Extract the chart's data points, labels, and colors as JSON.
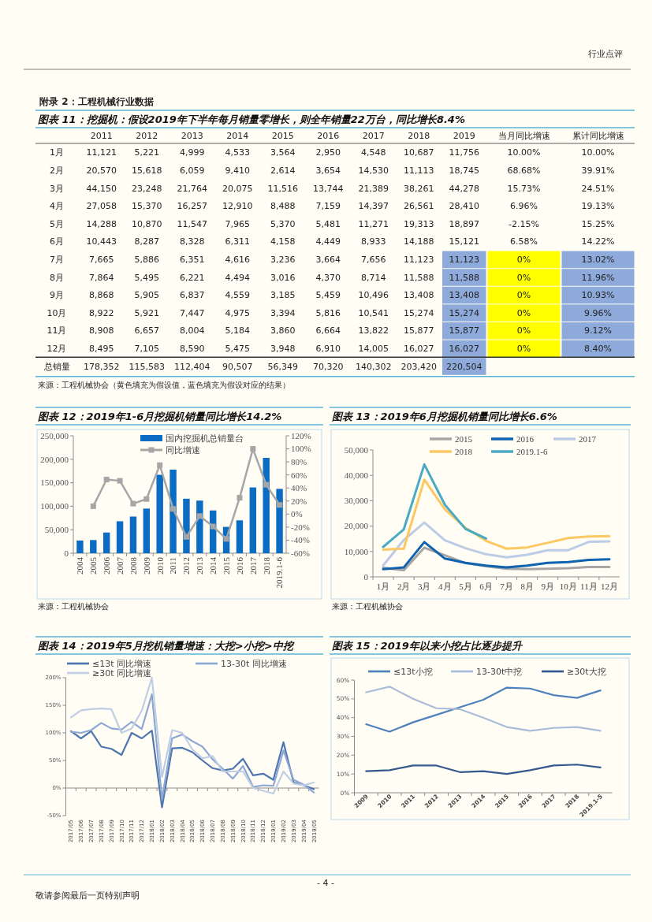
{
  "chart_data": [
    {
      "type": "other",
      "title": "附录 2：工程机械行业数据",
      "annotations": [
        "行业点评",
        "- 4 -",
        "敬请参阅最后一页特别声明"
      ]
    },
    {
      "type": "heatmap",
      "title": "图表 11：挖掘机：假设2019年下半年每月销量零增长，则全年销量22万台，同比增长8.4%",
      "categories": [
        "2011",
        "2012",
        "2013",
        "2014",
        "2015",
        "2016",
        "2017",
        "2018",
        "2019",
        "当月同比增速",
        "累计同比增速"
      ],
      "y_categories": [
        "1月",
        "2月",
        "3月",
        "4月",
        "5月",
        "6月",
        "7月",
        "8月",
        "9月",
        "10月",
        "11月",
        "12月",
        "总销量"
      ],
      "cells": [
        [
          11121,
          5221,
          4999,
          4533,
          3564,
          2950,
          4548,
          10687,
          11756,
          10.0,
          10.0
        ],
        [
          20570,
          15618,
          6059,
          9410,
          2614,
          3654,
          14530,
          11113,
          18745,
          68.68,
          39.91
        ],
        [
          44150,
          23248,
          21764,
          20075,
          11516,
          13744,
          21389,
          38261,
          44278,
          15.73,
          24.51
        ],
        [
          27058,
          15370,
          16257,
          12910,
          8488,
          7159,
          14397,
          26561,
          28410,
          6.96,
          19.13
        ],
        [
          14288,
          10870,
          11547,
          7965,
          5370,
          5481,
          11271,
          19313,
          18897,
          -2.15,
          15.25
        ],
        [
          10443,
          8287,
          8328,
          6311,
          4158,
          4449,
          8933,
          14188,
          15121,
          6.58,
          14.22
        ],
        [
          7665,
          5886,
          6351,
          4616,
          3236,
          3664,
          7656,
          11123,
          11123,
          0,
          13.02
        ],
        [
          7864,
          5495,
          6221,
          4494,
          3016,
          4370,
          8714,
          11588,
          11588,
          0,
          11.96
        ],
        [
          8868,
          5905,
          6837,
          4559,
          3185,
          5459,
          10496,
          13408,
          13408,
          0,
          10.93
        ],
        [
          8922,
          5921,
          7447,
          4975,
          3394,
          5816,
          10541,
          15274,
          15274,
          0,
          9.96
        ],
        [
          8908,
          6657,
          8004,
          5184,
          3860,
          6664,
          13822,
          15877,
          15877,
          0,
          9.12
        ],
        [
          8495,
          7105,
          8590,
          5475,
          3948,
          6910,
          14005,
          16027,
          16027,
          0,
          8.4
        ],
        [
          178352,
          115583,
          112404,
          90507,
          56349,
          70320,
          140302,
          203420,
          220504,
          null,
          null
        ]
      ],
      "cell_labels": [
        [
          "11,121",
          "5,221",
          "4,999",
          "4,533",
          "3,564",
          "2,950",
          "4,548",
          "10,687",
          "11,756",
          "10.00%",
          "10.00%"
        ],
        [
          "20,570",
          "15,618",
          "6,059",
          "9,410",
          "2,614",
          "3,654",
          "14,530",
          "11,113",
          "18,745",
          "68.68%",
          "39.91%"
        ],
        [
          "44,150",
          "23,248",
          "21,764",
          "20,075",
          "11,516",
          "13,744",
          "21,389",
          "38,261",
          "44,278",
          "15.73%",
          "24.51%"
        ],
        [
          "27,058",
          "15,370",
          "16,257",
          "12,910",
          "8,488",
          "7,159",
          "14,397",
          "26,561",
          "28,410",
          "6.96%",
          "19.13%"
        ],
        [
          "14,288",
          "10,870",
          "11,547",
          "7,965",
          "5,370",
          "5,481",
          "11,271",
          "19,313",
          "18,897",
          "-2.15%",
          "15.25%"
        ],
        [
          "10,443",
          "8,287",
          "8,328",
          "6,311",
          "4,158",
          "4,449",
          "8,933",
          "14,188",
          "15,121",
          "6.58%",
          "14.22%"
        ],
        [
          "7,665",
          "5,886",
          "6,351",
          "4,616",
          "3,236",
          "3,664",
          "7,656",
          "11,123",
          "11,123",
          "0%",
          "13.02%"
        ],
        [
          "7,864",
          "5,495",
          "6,221",
          "4,494",
          "3,016",
          "4,370",
          "8,714",
          "11,588",
          "11,588",
          "0%",
          "11.96%"
        ],
        [
          "8,868",
          "5,905",
          "6,837",
          "4,559",
          "3,185",
          "5,459",
          "10,496",
          "13,408",
          "13,408",
          "0%",
          "10.93%"
        ],
        [
          "8,922",
          "5,921",
          "7,447",
          "4,975",
          "3,394",
          "5,816",
          "10,541",
          "15,274",
          "15,274",
          "0%",
          "9.96%"
        ],
        [
          "8,908",
          "6,657",
          "8,004",
          "5,184",
          "3,860",
          "6,664",
          "13,822",
          "15,877",
          "15,877",
          "0%",
          "9.12%"
        ],
        [
          "8,495",
          "7,105",
          "8,590",
          "5,475",
          "3,948",
          "6,910",
          "14,005",
          "16,027",
          "16,027",
          "0%",
          "8.40%"
        ],
        [
          "178,352",
          "115,583",
          "112,404",
          "90,507",
          "56,349",
          "70,320",
          "140,302",
          "203,420",
          "220,504",
          null,
          null
        ]
      ],
      "colors": [
        [
          null,
          null,
          null,
          null,
          null,
          null,
          null,
          null,
          null,
          null,
          null
        ],
        [
          null,
          null,
          null,
          null,
          null,
          null,
          null,
          null,
          null,
          null,
          null
        ],
        [
          null,
          null,
          null,
          null,
          null,
          null,
          null,
          null,
          null,
          null,
          null
        ],
        [
          null,
          null,
          null,
          null,
          null,
          null,
          null,
          null,
          null,
          null,
          null
        ],
        [
          null,
          null,
          null,
          null,
          null,
          null,
          null,
          null,
          null,
          null,
          null
        ],
        [
          null,
          null,
          null,
          null,
          null,
          null,
          null,
          null,
          null,
          null,
          null
        ],
        [
          null,
          null,
          null,
          null,
          null,
          null,
          null,
          null,
          "#8eaadb",
          "#ffff00",
          "#8eaadb"
        ],
        [
          null,
          null,
          null,
          null,
          null,
          null,
          null,
          null,
          "#8eaadb",
          "#ffff00",
          "#8eaadb"
        ],
        [
          null,
          null,
          null,
          null,
          null,
          null,
          null,
          null,
          "#8eaadb",
          "#ffff00",
          "#8eaadb"
        ],
        [
          null,
          null,
          null,
          null,
          null,
          null,
          null,
          null,
          "#8eaadb",
          "#ffff00",
          "#8eaadb"
        ],
        [
          null,
          null,
          null,
          null,
          null,
          null,
          null,
          null,
          "#8eaadb",
          "#ffff00",
          "#8eaadb"
        ],
        [
          null,
          null,
          null,
          null,
          null,
          null,
          null,
          null,
          "#8eaadb",
          "#ffff00",
          "#8eaadb"
        ],
        [
          null,
          null,
          null,
          null,
          null,
          null,
          null,
          null,
          "#8eaadb",
          null,
          null
        ]
      ],
      "annotations": [
        "来源：工程机械协会（黄色填充为假设值，蓝色填充为假设对应的结果）"
      ]
    },
    {
      "type": "bar",
      "title": "图表 12：2019年1-6月挖掘机销量同比增长14.2%",
      "categories": [
        "2004",
        "2005",
        "2006",
        "2007",
        "2008",
        "2009",
        "2010",
        "2011",
        "2012",
        "2013",
        "2014",
        "2015",
        "2016",
        "2017",
        "2018",
        "2019.1-6"
      ],
      "series": [
        {
          "name": "国内挖掘机总销量台",
          "type": "bar",
          "color": "#0b6cc4",
          "values": [
            27000,
            28000,
            44000,
            68000,
            78000,
            95000,
            167000,
            178000,
            116000,
            112000,
            91000,
            56000,
            70000,
            140000,
            203000,
            137000
          ]
        },
        {
          "name": "同比增速",
          "type": "line",
          "axis": "y2",
          "color": "#a6a6a6",
          "values": [
            null,
            12,
            53,
            51,
            16,
            23,
            75,
            8,
            -35,
            -3,
            -19,
            -38,
            25,
            100,
            45,
            14
          ]
        }
      ],
      "ylim": [
        0,
        250000
      ],
      "yticks": [
        0,
        {
          "value": 50000,
          "label": "50,000"
        },
        {
          "value": 100000,
          "label": "100,000"
        },
        {
          "value": 150000,
          "label": "150,000"
        },
        {
          "value": 200000,
          "label": "200,000"
        },
        {
          "value": 250000,
          "label": "250,000"
        }
      ],
      "y2lim": [
        -60,
        120
      ],
      "y2ticks": [
        {
          "value": -60,
          "label": "-60%"
        },
        {
          "value": -40,
          "label": "-40%"
        },
        {
          "value": -20,
          "label": "-20%"
        },
        {
          "value": 0,
          "label": "0%"
        },
        {
          "value": 20,
          "label": "20%"
        },
        {
          "value": 40,
          "label": "40%"
        },
        {
          "value": 60,
          "label": "60%"
        },
        {
          "value": 80,
          "label": "80%"
        },
        {
          "value": 100,
          "label": "100%"
        },
        {
          "value": 120,
          "label": "120%"
        }
      ],
      "marker": "square",
      "legend": "top",
      "annotations": [
        "来源：工程机械协会"
      ]
    },
    {
      "type": "line",
      "title": "图表 13：2019年6月挖掘机销量同比增长6.6%",
      "categories": [
        "1月",
        "2月",
        "3月",
        "4月",
        "5月",
        "6月",
        "7月",
        "8月",
        "9月",
        "10月",
        "11月",
        "12月"
      ],
      "series": [
        {
          "name": "2015",
          "color": "#a6a6a6",
          "values": [
            3600,
            2600,
            11500,
            8500,
            5400,
            4200,
            3200,
            3000,
            3200,
            3400,
            3900,
            3900
          ]
        },
        {
          "name": "2016",
          "color": "#0e62b0",
          "values": [
            3000,
            3700,
            13700,
            7200,
            5500,
            4400,
            3700,
            4400,
            5500,
            5800,
            6700,
            6900
          ]
        },
        {
          "name": "2017",
          "color": "#bccbe6",
          "values": [
            4500,
            14500,
            21400,
            14400,
            11300,
            8900,
            7700,
            8700,
            10500,
            10500,
            13800,
            14000
          ]
        },
        {
          "name": "2018",
          "color": "#fbc862",
          "values": [
            10700,
            11100,
            38300,
            26600,
            19300,
            14200,
            11100,
            11600,
            13400,
            15300,
            15900,
            16000
          ]
        },
        {
          "name": "2019.1-6",
          "color": "#4aaac4",
          "values": [
            11800,
            18700,
            44300,
            28400,
            18900,
            15100,
            null,
            null,
            null,
            null,
            null,
            null
          ]
        }
      ],
      "ylim": [
        0,
        50000
      ],
      "yticks": [
        0,
        {
          "value": 10000,
          "label": "10,000"
        },
        {
          "value": 20000,
          "label": "20,000"
        },
        {
          "value": 30000,
          "label": "30,000"
        },
        {
          "value": 40000,
          "label": "40,000"
        },
        {
          "value": 50000,
          "label": "50,000"
        }
      ],
      "legend": "top",
      "annotations": [
        "来源：工程机械协会"
      ]
    },
    {
      "type": "line",
      "title": "图表 14：2019年5月挖机销量增速：大挖>小挖>中挖",
      "categories": [
        "2017/05",
        "2017/06",
        "2017/07",
        "2017/08",
        "2017/09",
        "2017/10",
        "2017/11",
        "2017/12",
        "2018/01",
        "2018/02",
        "2018/03",
        "2018/04",
        "2018/05",
        "2018/06",
        "2018/07",
        "2018/08",
        "2018/09",
        "2018/10",
        "2018/11",
        "2018/12",
        "2019/01",
        "2019/02",
        "2019/03",
        "2019/04",
        "2019/05"
      ],
      "series": [
        {
          "name": "≤13t 同比增速",
          "color": "#4f76b0",
          "values": [
            103,
            90,
            103,
            75,
            71,
            60,
            100,
            90,
            104,
            -35,
            72,
            73,
            65,
            50,
            36,
            32,
            35,
            53,
            23,
            26,
            15,
            83,
            10,
            5,
            -2
          ]
        },
        {
          "name": "13-30t 同比增速",
          "color": "#8ea8d4",
          "values": [
            102,
            100,
            105,
            118,
            108,
            106,
            120,
            107,
            170,
            -20,
            90,
            97,
            85,
            75,
            52,
            35,
            17,
            40,
            2,
            5,
            4,
            68,
            15,
            6,
            -8
          ]
        },
        {
          "name": "≥30t 同比增速",
          "color": "#bfcde5",
          "values": [
            128,
            141,
            143,
            144,
            143,
            100,
            108,
            140,
            200,
            20,
            105,
            100,
            70,
            54,
            58,
            30,
            30,
            30,
            0,
            -5,
            -10,
            30,
            8,
            5,
            10
          ]
        }
      ],
      "ylim": [
        -50,
        200
      ],
      "yticks": [
        {
          "value": -50,
          "label": "-50%"
        },
        {
          "value": 0,
          "label": "0%"
        },
        {
          "value": 50,
          "label": "50%"
        },
        {
          "value": 100,
          "label": "100%"
        },
        {
          "value": 150,
          "label": "150%"
        },
        {
          "value": 200,
          "label": "200%"
        }
      ],
      "legend": "top"
    },
    {
      "type": "line",
      "title": "图表 15：2019年以来小挖占比逐步提升",
      "categories": [
        "2009",
        "2010",
        "2011",
        "2012",
        "2013",
        "2014",
        "2015",
        "2016",
        "2017",
        "2018",
        "2019.1-5"
      ],
      "series": [
        {
          "name": "≤13t小挖",
          "color": "#4f81bd",
          "values": [
            36.5,
            32.5,
            37.5,
            41.5,
            45.5,
            49.5,
            56,
            55.5,
            52,
            50.5,
            54.5
          ]
        },
        {
          "name": "13-30t中挖",
          "color": "#a9bcd9",
          "values": [
            53.5,
            56.5,
            50,
            45,
            44.5,
            40,
            35,
            33,
            34.5,
            35,
            33
          ]
        },
        {
          "name": "≥30t大挖",
          "color": "#35598f",
          "values": [
            11.5,
            12,
            14.5,
            14.5,
            11,
            11.5,
            10,
            12,
            14.5,
            15,
            13.5
          ]
        }
      ],
      "ylim": [
        0,
        60
      ],
      "yticks": [
        {
          "value": 0,
          "label": "0%"
        },
        {
          "value": 10,
          "label": "10%"
        },
        {
          "value": 20,
          "label": "20%"
        },
        {
          "value": 30,
          "label": "30%"
        },
        {
          "value": 40,
          "label": "40%"
        },
        {
          "value": 50,
          "label": "50%"
        },
        {
          "value": 60,
          "label": "60%"
        }
      ],
      "legend": "top"
    }
  ]
}
